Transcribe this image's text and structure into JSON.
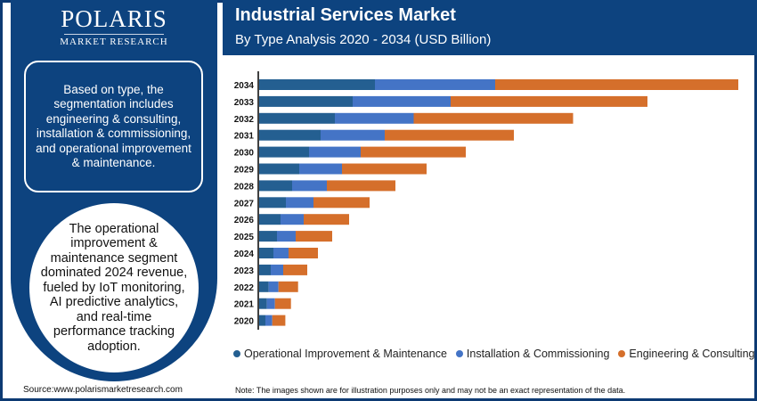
{
  "brand": {
    "name": "POLARIS",
    "tagline": "MARKET RESEARCH"
  },
  "header": {
    "title": "Industrial Services Market",
    "subtitle": "By Type Analysis 2020 - 2034 (USD Billion)"
  },
  "side": {
    "box_text": "Based on type, the segmentation includes engineering & consulting, installation & commissioning, and operational improvement & maintenance.",
    "circle_text": "The operational improvement & maintenance segment dominated 2024 revenue, fueled by IoT monitoring, AI predictive analytics, and real-time performance tracking adoption."
  },
  "footer": {
    "source": "Source:www.polarismarketresearch.com",
    "note": "Note: The images shown are for illustration purposes only and may not be an exact representation of the data."
  },
  "chart_data": {
    "type": "bar",
    "orientation": "horizontal",
    "stacked": true,
    "title": "Industrial Services Market",
    "subtitle": "By Type Analysis 2020 - 2034 (USD Billion)",
    "categories": [
      "2034",
      "2033",
      "2032",
      "2031",
      "2030",
      "2029",
      "2028",
      "2027",
      "2026",
      "2025",
      "2024",
      "2023",
      "2022",
      "2021",
      "2020"
    ],
    "series": [
      {
        "name": "Operational Improvement & Maintenance",
        "color": "#245f91",
        "values": [
          130,
          105,
          85,
          69,
          56,
          45,
          37,
          30,
          24,
          20,
          16,
          13,
          10.7,
          8.7,
          7
        ]
      },
      {
        "name": "Installation & Commissioning",
        "color": "#4474c6",
        "values": [
          135,
          110,
          88.5,
          72,
          58,
          48,
          39,
          31,
          26,
          21,
          17,
          14,
          11,
          9,
          7.7
        ]
      },
      {
        "name": "Engineering & Consulting",
        "color": "#d56f2b",
        "values": [
          273,
          221,
          179,
          145,
          118,
          95,
          77,
          63,
          51,
          41,
          33,
          27,
          22,
          18,
          14.7
        ]
      }
    ],
    "x_axis": "hidden",
    "grid": false,
    "legend": "bottom"
  }
}
